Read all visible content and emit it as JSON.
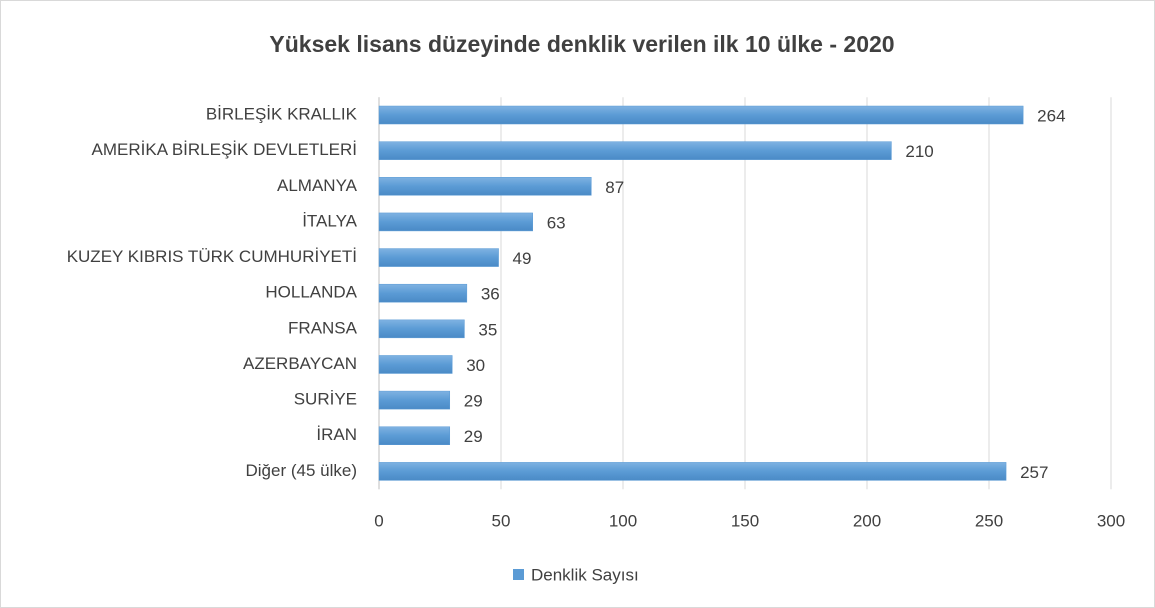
{
  "chart_data": {
    "type": "hbar",
    "title": "Yüksek lisans düzeyinde denklik verilen ilk 10 ülke - 2020",
    "categories": [
      "BİRLEŞİK KRALLIK",
      "AMERİKA BİRLEŞİK DEVLETLERİ",
      "ALMANYA",
      "İTALYA",
      "KUZEY KIBRIS TÜRK CUMHURİYETİ",
      "HOLLANDA",
      "FRANSA",
      "AZERBAYCAN",
      "SURİYE",
      "İRAN",
      "Diğer (45 ülke)"
    ],
    "series": [
      {
        "name": "Denklik Sayısı",
        "color": "#5b9bd5",
        "values": [
          264,
          210,
          87,
          63,
          49,
          36,
          35,
          30,
          29,
          29,
          257
        ]
      }
    ],
    "xlim": [
      0,
      300
    ],
    "xticks": [
      0,
      50,
      100,
      150,
      200,
      250,
      300
    ],
    "grid": true,
    "legend": "bottom"
  }
}
